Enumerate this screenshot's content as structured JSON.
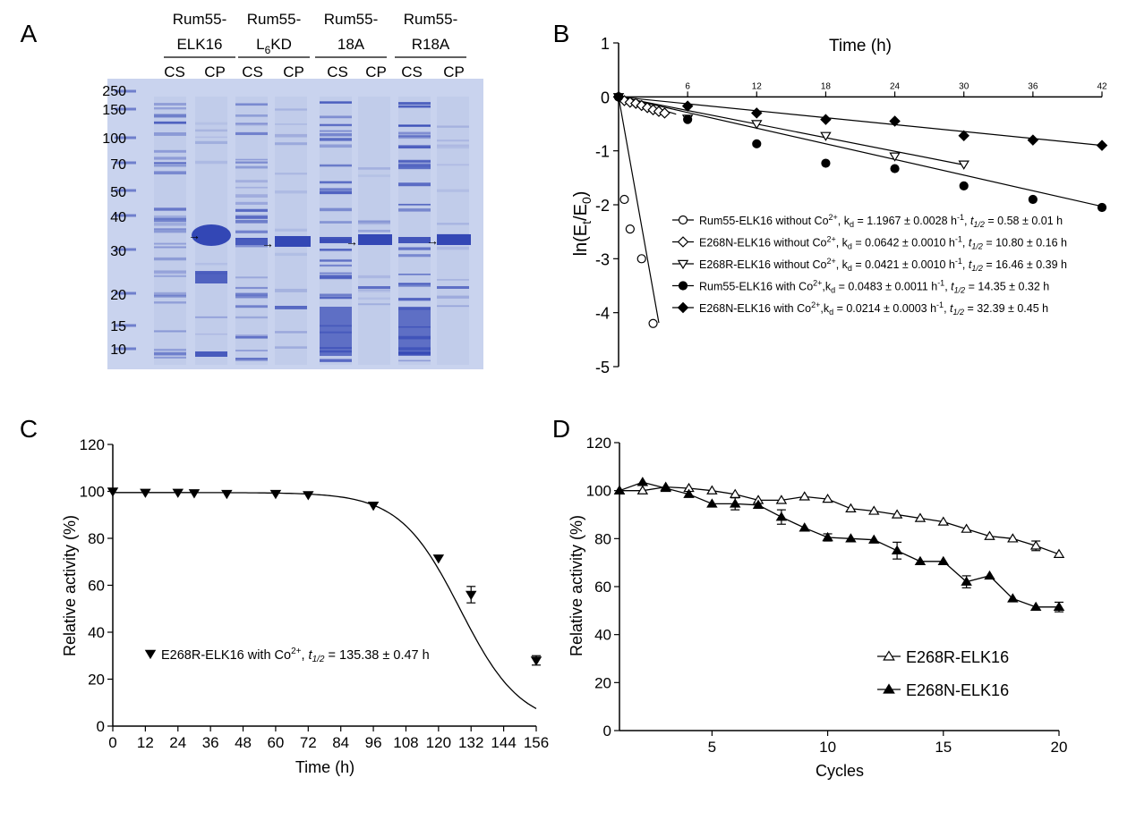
{
  "panels": {
    "A": {
      "letter": "A",
      "groups": [
        {
          "line1": "Rum55-",
          "line2": "ELK16",
          "sub": ""
        },
        {
          "line1": "Rum55-",
          "line2": "L",
          "sub": "6",
          "line2b": "KD"
        },
        {
          "line1": "Rum55-",
          "line2": "18A",
          "sub": ""
        },
        {
          "line1": "Rum55-",
          "line2": "R18A",
          "sub": ""
        }
      ],
      "lane_labels": [
        "CS",
        "CP",
        "CS",
        "CP",
        "CS",
        "CP",
        "CS",
        "CP"
      ],
      "markers": [
        "250",
        "150",
        "100",
        "70",
        "50",
        "40",
        "30",
        "20",
        "15",
        "10"
      ],
      "arrow": "→"
    },
    "B": {
      "letter": "B"
    },
    "C": {
      "letter": "C"
    },
    "D": {
      "letter": "D"
    }
  },
  "chart_data": [
    {
      "panel": "B",
      "type": "scatter",
      "title": "Time (h)",
      "ylabel_parts": [
        "ln(E",
        "t",
        "/E",
        "0",
        ")"
      ],
      "xlim": [
        0,
        42
      ],
      "ylim": [
        -5,
        1
      ],
      "xticks": [
        6,
        12,
        18,
        24,
        30,
        36,
        42
      ],
      "yticks": [
        1,
        0,
        -1,
        -2,
        -3,
        -4,
        -5
      ],
      "x_axis_position": "top",
      "legend_position": "lower-right",
      "series": [
        {
          "marker": "circle-open",
          "legend": "Rum55-ELK16 without Co²⁺, kd = 1.1967 ± 0.0028 h⁻¹, t1/2 = 0.58 ± 0.01 h",
          "x": [
            0,
            0.5,
            1,
            2,
            3
          ],
          "y": [
            0,
            -1.9,
            -2.45,
            -3.0,
            -4.2
          ],
          "fit": [
            [
              0,
              0
            ],
            [
              3.5,
              -4.19
            ]
          ]
        },
        {
          "marker": "diamond-open",
          "legend": "E268N-ELK16 without Co²⁺, kd = 0.0642 ± 0.0010 h⁻¹, t1/2 = 10.80 ± 0.16 h",
          "x": [
            0,
            0.5,
            1,
            1.5,
            2,
            2.5,
            3,
            3.5,
            4
          ],
          "y": [
            0,
            -0.07,
            -0.1,
            -0.12,
            -0.16,
            -0.2,
            -0.24,
            -0.27,
            -0.3
          ],
          "fit": [
            [
              0,
              0
            ],
            [
              5,
              -0.32
            ]
          ]
        },
        {
          "marker": "triangle-down-open",
          "legend": "E268R-ELK16 without Co²⁺, kd = 0.0421 ± 0.0010 h⁻¹, t1/2 = 16.46 ± 0.39 h",
          "x": [
            0,
            6,
            12,
            18,
            24,
            30
          ],
          "y": [
            0,
            -0.4,
            -0.5,
            -0.72,
            -1.1,
            -1.25
          ],
          "fit": [
            [
              0,
              0
            ],
            [
              30,
              -1.26
            ]
          ]
        },
        {
          "marker": "circle-filled",
          "legend": "Rum55-ELK16 with Co²⁺,kd = 0.0483 ± 0.0011 h⁻¹, t1/2 = 14.35 ± 0.32 h",
          "x": [
            0,
            6,
            12,
            18,
            24,
            30,
            36,
            42
          ],
          "y": [
            0,
            -0.42,
            -0.87,
            -1.23,
            -1.33,
            -1.65,
            -1.9,
            -2.05
          ],
          "fit": [
            [
              0,
              0
            ],
            [
              42,
              -2.03
            ]
          ]
        },
        {
          "marker": "diamond-filled",
          "legend": "E268N-ELK16 with Co²⁺,kd = 0.0214 ± 0.0003 h⁻¹, t1/2 = 32.39 ± 0.45 h",
          "x": [
            0,
            6,
            12,
            18,
            24,
            30,
            36,
            42
          ],
          "y": [
            0,
            -0.17,
            -0.3,
            -0.42,
            -0.45,
            -0.72,
            -0.8,
            -0.9
          ],
          "fit": [
            [
              0,
              0
            ],
            [
              42,
              -0.9
            ]
          ]
        }
      ],
      "legend_items": [
        {
          "name": "Rum55-ELK16 without Co",
          "sup": "2+",
          "kd": ", k",
          "kd_sub": "d",
          "kd_val": " = 1.1967 ± 0.0028 h",
          "kd_unit_sup": "-1",
          "t_sep": ", ",
          "t_label": "t",
          "t_sub": "1/2",
          "t_val": " = 0.58 ± 0.01 h"
        },
        {
          "name": "E268N-ELK16 without Co",
          "sup": "2+",
          "kd": ", k",
          "kd_sub": "d",
          "kd_val": " = 0.0642 ± 0.0010 h",
          "kd_unit_sup": "-1",
          "t_sep": ", ",
          "t_label": "t",
          "t_sub": "1/2",
          "t_val": " = 10.80 ± 0.16 h"
        },
        {
          "name": "E268R-ELK16 without Co",
          "sup": "2+",
          "kd": ", k",
          "kd_sub": "d",
          "kd_val": " = 0.0421 ± 0.0010 h",
          "kd_unit_sup": "-1",
          "t_sep": ", ",
          "t_label": "t",
          "t_sub": "1/2",
          "t_val": " = 16.46 ± 0.39 h"
        },
        {
          "name": "Rum55-ELK16 with Co",
          "sup": "2+",
          "kd": ",k",
          "kd_sub": "d",
          "kd_val": " = 0.0483 ± 0.0011 h",
          "kd_unit_sup": "-1",
          "t_sep": ", ",
          "t_label": "t",
          "t_sub": "1/2",
          "t_val": " = 14.35 ± 0.32 h"
        },
        {
          "name": "E268N-ELK16 with Co",
          "sup": "2+",
          "kd": ",k",
          "kd_sub": "d",
          "kd_val": " = 0.0214 ± 0.0003 h",
          "kd_unit_sup": "-1",
          "t_sep": ", ",
          "t_label": "t",
          "t_sub": "1/2",
          "t_val": " = 32.39 ± 0.45 h"
        }
      ]
    },
    {
      "panel": "C",
      "type": "scatter",
      "xlabel": "Time (h)",
      "ylabel": "Relative activity (%)",
      "xlim": [
        0,
        156
      ],
      "ylim": [
        0,
        120
      ],
      "xticks": [
        0,
        12,
        24,
        36,
        48,
        60,
        72,
        84,
        96,
        108,
        120,
        132,
        144,
        156
      ],
      "yticks": [
        0,
        20,
        40,
        60,
        80,
        100,
        120
      ],
      "legend_position": "lower-left",
      "series": [
        {
          "marker": "triangle-down-filled",
          "x": [
            0,
            12,
            24,
            30,
            42,
            60,
            72,
            96,
            120,
            132,
            156
          ],
          "y": [
            100,
            99.5,
            99.5,
            99.3,
            99,
            99,
            98.5,
            94,
            71.5,
            56,
            28
          ],
          "err": [
            0,
            0,
            0,
            0,
            0,
            0,
            0,
            0,
            0,
            3.5,
            2
          ]
        }
      ],
      "fit_curve": {
        "top": 99.5,
        "half": 128,
        "slope": 18
      },
      "legend_item": {
        "name": "E268R-ELK16 with Co",
        "sup": "2+",
        "sep": ", ",
        "t_label": "t",
        "t_sub": "1/2",
        "t_val": " = 135.38 ± 0.47 h"
      }
    },
    {
      "panel": "D",
      "type": "line",
      "xlabel": "Cycles",
      "ylabel": "Relative activity (%)",
      "xlim": [
        1,
        20
      ],
      "ylim": [
        0,
        120
      ],
      "xticks": [
        5,
        10,
        15,
        20
      ],
      "yticks": [
        0,
        20,
        40,
        60,
        80,
        100,
        120
      ],
      "legend_position": "lower-right",
      "series": [
        {
          "name": "E268R-ELK16",
          "marker": "triangle-up-open",
          "x": [
            1,
            2,
            3,
            4,
            5,
            6,
            7,
            8,
            9,
            10,
            11,
            12,
            13,
            14,
            15,
            16,
            17,
            18,
            19,
            20
          ],
          "y": [
            100,
            100,
            101.5,
            101,
            100,
            98.5,
            96,
            96,
            97.5,
            96.5,
            92.5,
            91.5,
            90,
            88.5,
            87,
            84,
            81,
            80,
            77,
            73.5
          ],
          "err": [
            0,
            0,
            0,
            0,
            0,
            0,
            0,
            0,
            0,
            0,
            0,
            0,
            0,
            0,
            0,
            0,
            0,
            0,
            2,
            0
          ]
        },
        {
          "name": "E268N-ELK16",
          "marker": "triangle-up-filled",
          "x": [
            1,
            2,
            3,
            4,
            5,
            6,
            7,
            8,
            9,
            10,
            11,
            12,
            13,
            14,
            15,
            16,
            17,
            18,
            19,
            20
          ],
          "y": [
            100,
            103.5,
            101,
            98.5,
            94.5,
            94.5,
            94,
            89,
            84.5,
            80.5,
            80,
            79.5,
            75,
            70.5,
            70.5,
            62,
            64.5,
            55,
            51.5,
            51.5
          ],
          "err": [
            0,
            0,
            0,
            0,
            0,
            2.5,
            0,
            3,
            0,
            1.5,
            0,
            0,
            3.5,
            0,
            0,
            2.5,
            0,
            0,
            0,
            2
          ]
        }
      ]
    }
  ],
  "colors": {
    "gel_background": "#c9d3ee",
    "gel_band": "#3347b5",
    "axis": "#000000"
  }
}
